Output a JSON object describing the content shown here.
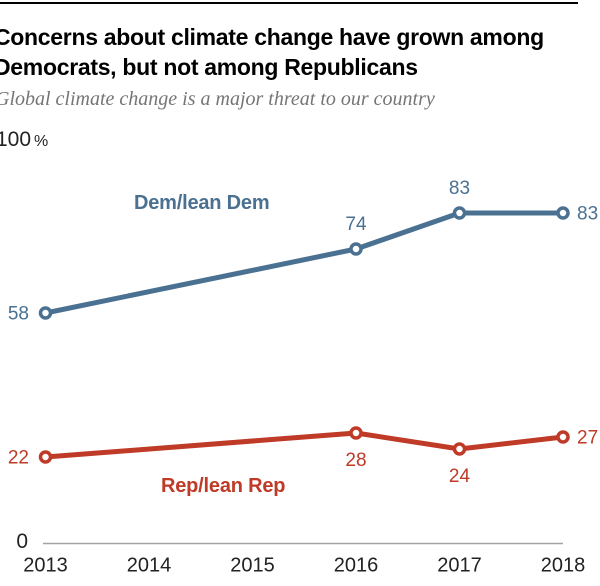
{
  "header": {
    "title_line1": "Concerns about climate change have grown among",
    "title_line2": "Democrats, but not among Republicans",
    "subtitle": "Global climate change is a major threat to our country"
  },
  "axis": {
    "y_max": "100",
    "y_max_unit": "%",
    "y_zero": "0"
  },
  "colors": {
    "dem_blue": "#4a7191",
    "rep_red": "#bf3a27",
    "axis_line": "#a3a3a3",
    "tick_text": "#222222",
    "title_text": "#000000",
    "subtitle_text": "#757575",
    "top_rule": "#000000"
  },
  "chart_data": {
    "type": "line",
    "title": "Concerns about climate change have grown among Democrats, but not among Republicans",
    "subtitle": "Global climate change is a major threat to our country",
    "x_ticks": [
      2013,
      2014,
      2015,
      2016,
      2017,
      2018
    ],
    "ylim": [
      0,
      100
    ],
    "grid": false,
    "legend_position": "inline-annotations",
    "series": [
      {
        "name": "Dem/lean Dem",
        "color": "#4a7191",
        "x": [
          2013,
          2016,
          2017,
          2018
        ],
        "values": [
          58,
          74,
          83,
          83
        ],
        "label_positions": [
          "left",
          "above",
          "above",
          "right"
        ]
      },
      {
        "name": "Rep/lean Rep",
        "color": "#bf3a27",
        "x": [
          2013,
          2016,
          2017,
          2018
        ],
        "values": [
          22,
          28,
          24,
          27
        ],
        "label_positions": [
          "left",
          "below",
          "below",
          "right"
        ]
      }
    ]
  }
}
